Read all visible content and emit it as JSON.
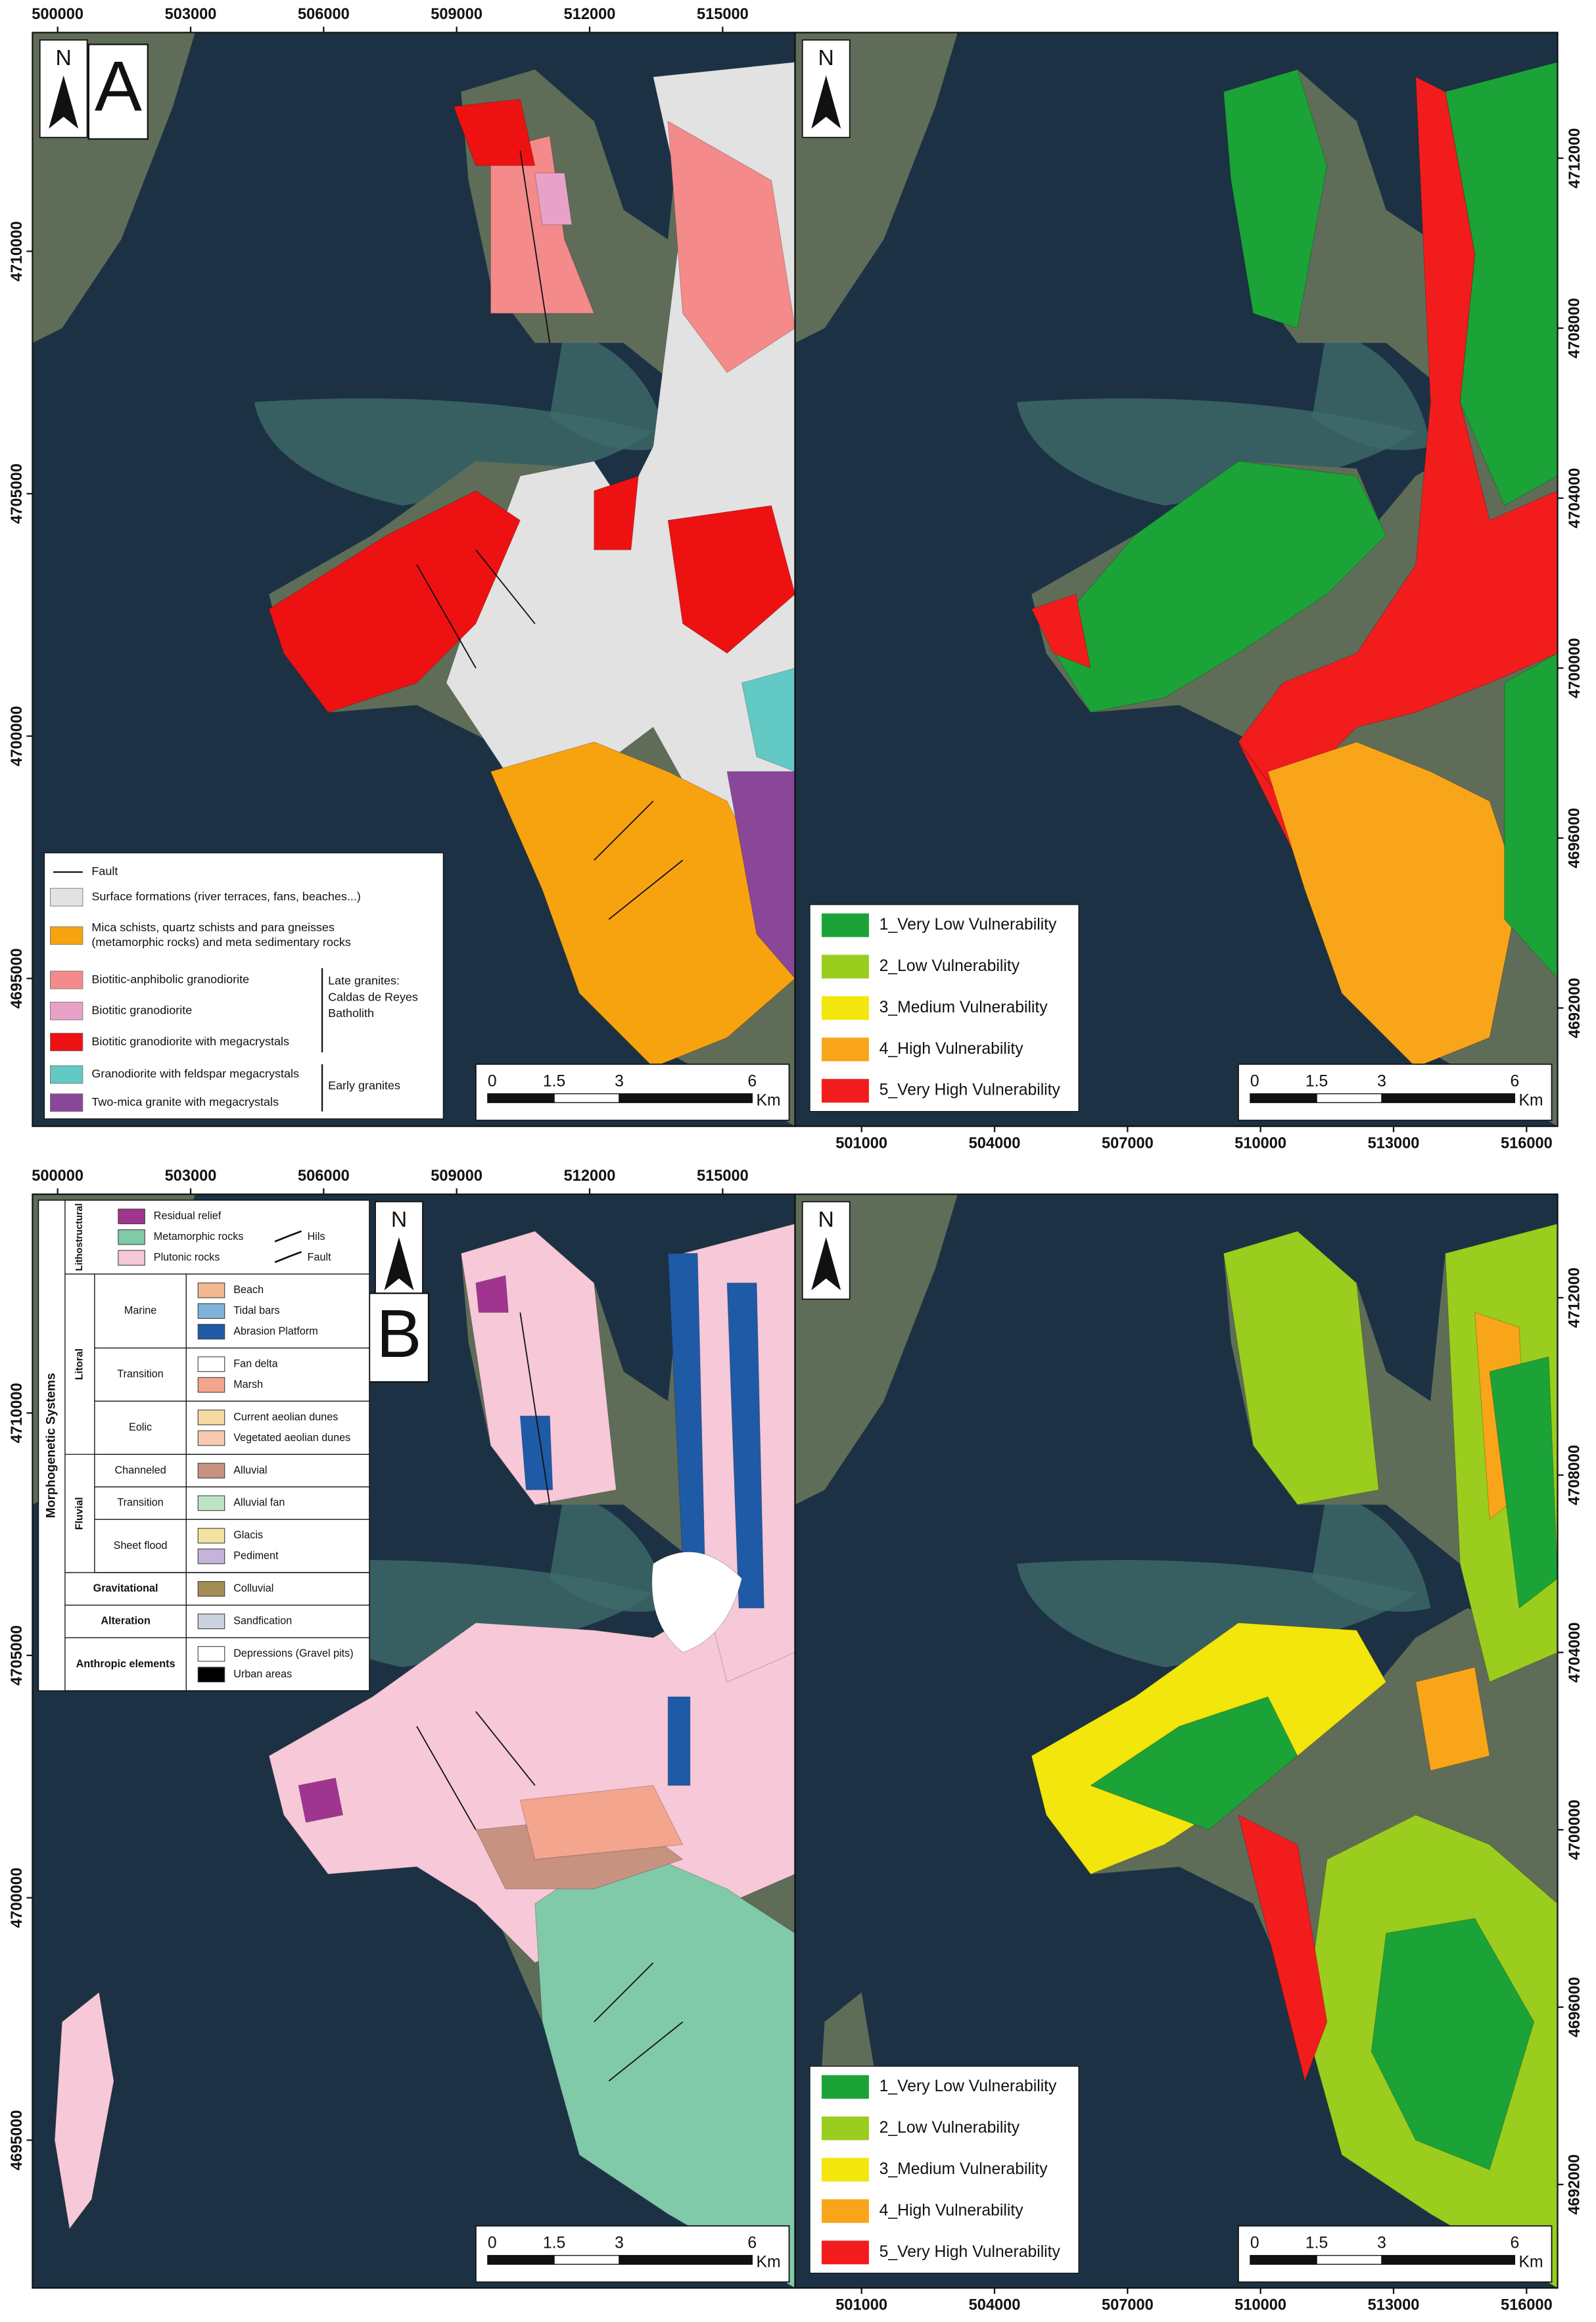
{
  "coordinates": {
    "top_x": [
      "500000",
      "503000",
      "506000",
      "509000",
      "512000",
      "515000"
    ],
    "bottom_x": [
      "501000",
      "504000",
      "507000",
      "510000",
      "513000",
      "516000"
    ],
    "left_y": [
      "4710000",
      "4705000",
      "4700000",
      "4695000"
    ],
    "right_y": [
      "4712000",
      "4708000",
      "4704000",
      "4700000",
      "4696000",
      "4692000"
    ]
  },
  "north": "N",
  "scale_bar": {
    "ticks": [
      "0",
      "1.5",
      "3",
      "6"
    ],
    "unit": "Km"
  },
  "map_a": {
    "label": "A",
    "legend": {
      "fault": "Fault",
      "units": [
        {
          "label": [
            "Surface formations (river terraces, fans, beaches...)"
          ],
          "color": "#e2e2e2"
        },
        {
          "label": [
            "Mica schists, quartz schists and para gneisses",
            "(metamorphic rocks) and meta sedimentary rocks"
          ],
          "color": "#f7a30f"
        },
        {
          "label": [
            "Biotitic-anphibolic granodiorite"
          ],
          "color": "#f48a8a"
        },
        {
          "label": [
            "Biotitic granodiorite"
          ],
          "color": "#e8a2c8"
        },
        {
          "label": [
            "Biotitic granodiorite with megacrystals"
          ],
          "color": "#ee1111"
        },
        {
          "label": [
            "Granodiorite with feldspar megacrystals"
          ],
          "color": "#62c9c4"
        },
        {
          "label": [
            "Two-mica granite with megacrystals"
          ],
          "color": "#8a4699"
        }
      ],
      "groups": [
        [
          "Late granites:",
          "Caldas de Reyes",
          "Batholith"
        ],
        [
          "Early granites"
        ]
      ]
    }
  },
  "map_b": {
    "label": "B",
    "legend": {
      "title": "Morphogenetic Systems",
      "groups": [
        {
          "name": "Lithostructural",
          "items": [
            {
              "label": "Residual relief",
              "color": "#a0358f"
            },
            {
              "label": "Metamorphic rocks",
              "color": "#80c9a9"
            },
            {
              "label": "Plutonic rocks",
              "color": "#f6c8d8"
            }
          ],
          "symbols": [
            "Hils",
            "Fault"
          ]
        },
        {
          "name": "Litoral",
          "subgroups": [
            {
              "name": "Marine",
              "items": [
                {
                  "label": "Beach",
                  "color": "#f4b98f"
                },
                {
                  "label": "Tidal bars",
                  "color": "#7fb2d8"
                },
                {
                  "label": "Abrasion Platform",
                  "color": "#1f5aa6"
                }
              ]
            },
            {
              "name": "Transition",
              "items": [
                {
                  "label": "Fan delta",
                  "color": "#ffffff"
                },
                {
                  "label": "Marsh",
                  "color": "#f4a58e"
                }
              ]
            },
            {
              "name": "Eolic",
              "items": [
                {
                  "label": "Current aeolian dunes",
                  "color": "#f6d9a0"
                },
                {
                  "label": "Vegetated aeolian dunes",
                  "color": "#f7c9b0"
                }
              ]
            }
          ]
        },
        {
          "name": "Fluvial",
          "subgroups": [
            {
              "name": "Channeled",
              "items": [
                {
                  "label": "Alluvial",
                  "color": "#c79280"
                }
              ]
            },
            {
              "name": "Transition",
              "items": [
                {
                  "label": "Alluvial fan",
                  "color": "#bde3c6"
                }
              ]
            },
            {
              "name": "Sheet flood",
              "items": [
                {
                  "label": "Glacis",
                  "color": "#f2e4a0"
                },
                {
                  "label": "Pediment",
                  "color": "#c5b3da"
                }
              ]
            }
          ]
        },
        {
          "name": "Gravitational",
          "items": [
            {
              "label": "Colluvial",
              "color": "#a38c55"
            }
          ]
        },
        {
          "name": "Alteration",
          "items": [
            {
              "label": "Sandfication",
              "color": "#c9d3e0"
            }
          ]
        },
        {
          "name": "Anthropic elements",
          "items": [
            {
              "label": "Depressions (Gravel pits)",
              "color": "#ffffff"
            },
            {
              "label": "Urban areas",
              "color": "#000000"
            }
          ]
        }
      ]
    }
  },
  "vulnerability_legend": [
    {
      "label": "1_Very Low Vulnerability",
      "color": "#1ba337"
    },
    {
      "label": "2_Low Vulnerability",
      "color": "#9acd1e"
    },
    {
      "label": "3_Medium Vulnerability",
      "color": "#f2e60c"
    },
    {
      "label": "4_High Vulnerability",
      "color": "#f9a51a"
    },
    {
      "label": "5_Very High Vulnerability",
      "color": "#f21c1c"
    }
  ]
}
